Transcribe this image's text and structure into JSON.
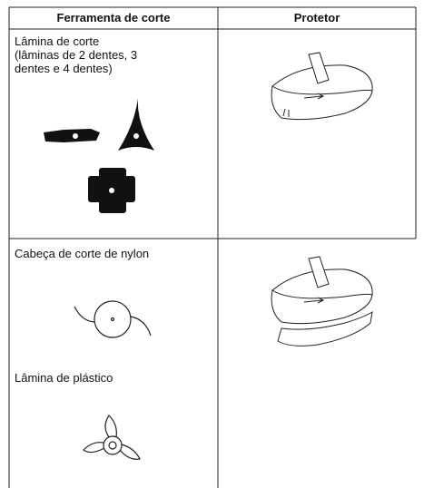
{
  "table": {
    "header": [
      "Ferramenta de corte",
      "Protetor"
    ],
    "rows": [
      {
        "tool": "Lâmina de corte",
        "tool_note": "(lâminas de 2 dentes, 3 dentes e 4 dentes)"
      },
      {
        "tool": "Cabeça de corte de nylon",
        "tool_extra": "Lâmina de plástico"
      }
    ]
  }
}
